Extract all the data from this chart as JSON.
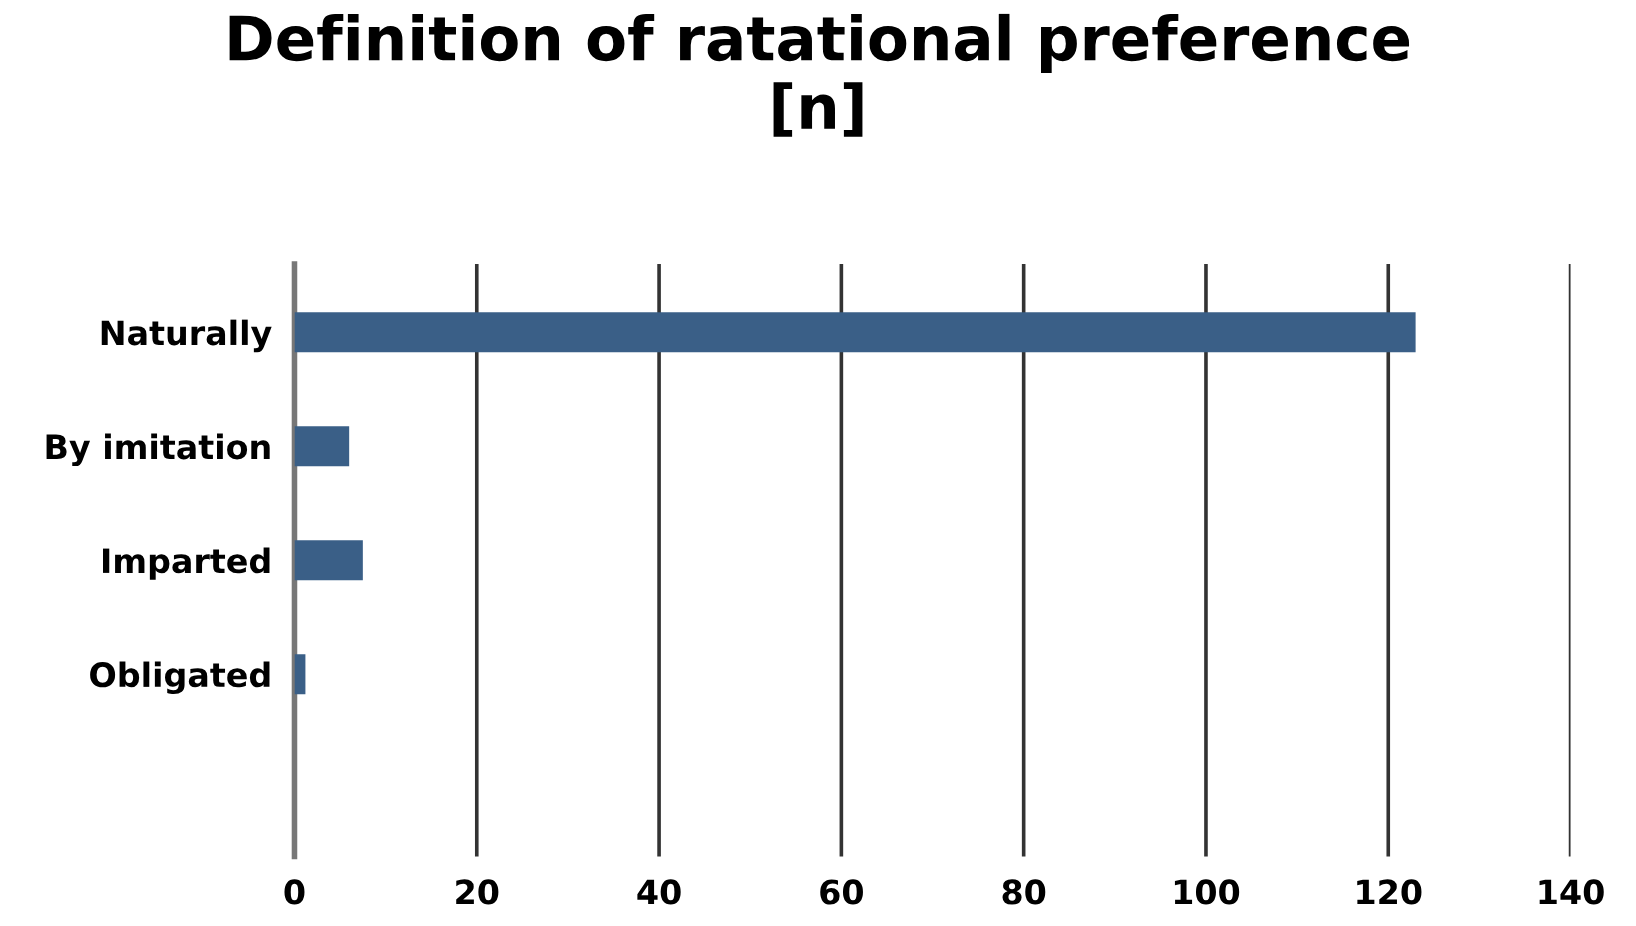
{
  "chart_data": {
    "type": "bar",
    "orientation": "horizontal",
    "title": "Definition of ratational preference\n[n]",
    "categories": [
      "Naturally",
      "By imitation",
      "Imparted",
      "Obligated"
    ],
    "values": [
      123,
      6,
      7.5,
      1.2
    ],
    "color": "#3a5f87",
    "xlim": [
      0,
      140
    ],
    "xticks": [
      0,
      20,
      40,
      60,
      80,
      100,
      120,
      140
    ],
    "grid": "x",
    "legend": false
  }
}
